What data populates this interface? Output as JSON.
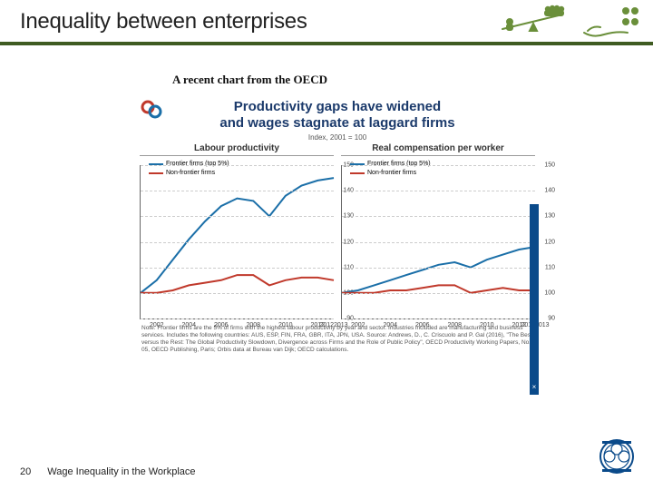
{
  "header": {
    "title": "Inequality between enterprises",
    "rule_color": "#3f5b21"
  },
  "subtitle": "A recent chart from the OECD",
  "chart": {
    "title_line1": "Productivity gaps have widened",
    "title_line2": "and wages stagnate at laggard firms",
    "title_color": "#1b3a6b",
    "index_note": "Index, 2001 = 100",
    "panel_left": {
      "title": "Labour productivity",
      "legend_frontier": "Frontier firms (top 5%)",
      "legend_nonfrontier": "Non-frontier firms",
      "color_frontier": "#1b6fa8",
      "color_nonfrontier": "#c0392b",
      "ylim": [
        90,
        150
      ],
      "yticks": [
        90,
        100,
        110,
        120,
        130,
        140,
        150
      ],
      "years": [
        2001,
        2002,
        2003,
        2004,
        2005,
        2006,
        2007,
        2008,
        2009,
        2010,
        2011,
        2012,
        2013
      ],
      "xticks": [
        2002,
        2004,
        2006,
        2008,
        2010,
        2012,
        2013
      ],
      "series_frontier": [
        100,
        105,
        113,
        121,
        128,
        134,
        137,
        136,
        130,
        138,
        142,
        144,
        145
      ],
      "series_nonfrontier": [
        100,
        100,
        101,
        103,
        104,
        105,
        107,
        107,
        103,
        105,
        106,
        106,
        105
      ],
      "line_width": 2
    },
    "panel_right": {
      "title": "Real compensation per worker",
      "legend_frontier": "Frontier firms (top 5%)",
      "legend_nonfrontier": "Non-frontier firms",
      "color_frontier": "#1b6fa8",
      "color_nonfrontier": "#c0392b",
      "ylim": [
        90,
        150
      ],
      "yticks": [
        90,
        100,
        110,
        120,
        130,
        140,
        150
      ],
      "years": [
        2001,
        2002,
        2003,
        2004,
        2005,
        2006,
        2007,
        2008,
        2009,
        2010,
        2011,
        2012,
        2013
      ],
      "xticks": [
        2002,
        2004,
        2006,
        2008,
        2010,
        2012,
        2013
      ],
      "series_frontier": [
        100,
        101,
        103,
        105,
        107,
        109,
        111,
        112,
        110,
        113,
        115,
        117,
        118
      ],
      "series_nonfrontier": [
        100,
        100,
        100,
        101,
        101,
        102,
        103,
        103,
        100,
        101,
        102,
        101,
        101
      ],
      "line_width": 2
    },
    "footnote": "Note: Frontier firms are the 5% of firms with the highest labour productivity by year and sector. Industries included are manufacturing and business services. Includes the following countries: AUS, ESP, FIN, FRA, GBR, ITA, JPN, USA. Source: Andrews, D., C. Criscuolo and P. Gal (2016), \"The Best versus the Rest: The Global Productivity Slowdown, Divergence across Firms and the Role of Public Policy\", OECD Productivity Working Papers, No. 05, OECD Publishing, Paris; Orbis data at Bureau van Dijk; OECD calculations.",
    "grid_color": "#cccccc",
    "axis_color": "#666666",
    "background": "#ffffff",
    "accent_bar_color": "#0a4a8a",
    "accent_bar_symbol": "×"
  },
  "footer": {
    "page": "20",
    "title": "Wage Inequality in the Workplace"
  },
  "icons": {
    "balance_color": "#6a8f3a",
    "hand_color": "#6a8f3a"
  }
}
